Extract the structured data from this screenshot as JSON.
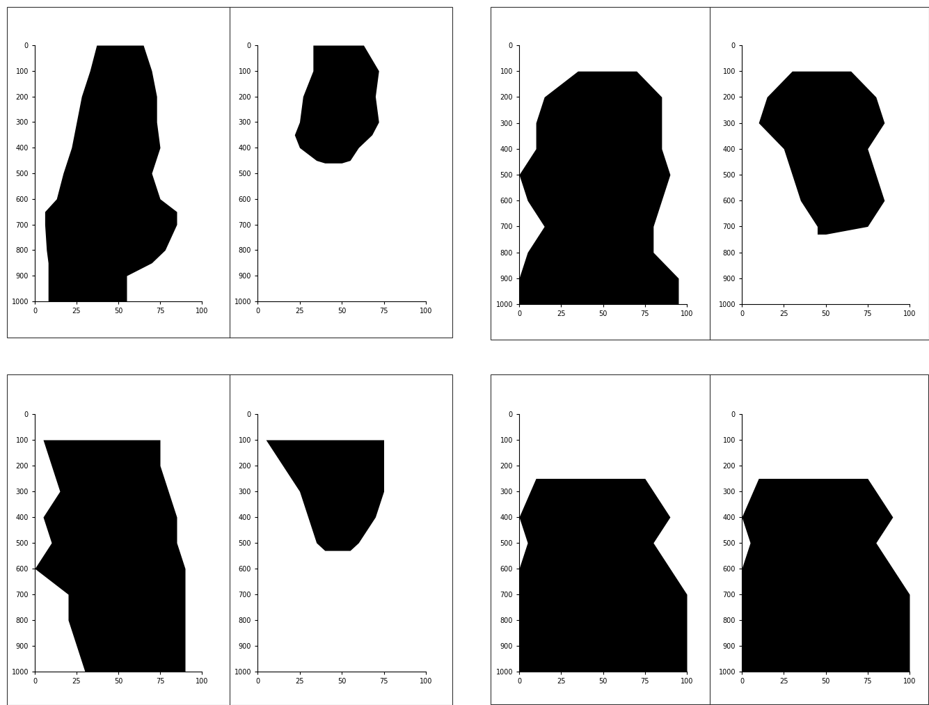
{
  "chart_data": [
    {
      "type": "area",
      "orientation": "horizontal",
      "color": "#000000",
      "y": [
        0,
        100,
        200,
        300,
        400,
        500,
        600,
        650,
        700,
        800,
        850,
        900,
        1000
      ],
      "left": [
        37,
        33,
        28,
        25,
        22,
        17,
        13,
        6,
        6,
        7,
        8,
        8,
        8
      ],
      "right": [
        65,
        70,
        73,
        73,
        75,
        70,
        75,
        85,
        85,
        78,
        70,
        55,
        55
      ],
      "xlim": [
        0,
        100
      ],
      "xticks": [
        0,
        25,
        50,
        75,
        100
      ],
      "ylim": [
        1000,
        0
      ],
      "yticks": [
        0,
        100,
        200,
        300,
        400,
        500,
        600,
        700,
        800,
        900,
        1000
      ]
    },
    {
      "type": "area",
      "orientation": "horizontal",
      "color": "#000000",
      "y": [
        0,
        100,
        200,
        300,
        350,
        400,
        450,
        460
      ],
      "left": [
        33,
        33,
        27,
        25,
        22,
        25,
        35,
        40
      ],
      "right": [
        63,
        72,
        70,
        72,
        68,
        60,
        55,
        50
      ],
      "xlim": [
        0,
        100
      ],
      "xticks": [
        0,
        25,
        50,
        75,
        100
      ],
      "ylim": [
        1000,
        0
      ],
      "yticks": [
        0,
        100,
        200,
        300,
        400,
        500,
        600,
        700,
        800,
        900,
        1000
      ]
    },
    {
      "type": "area",
      "orientation": "horizontal",
      "color": "#000000",
      "y": [
        100,
        200,
        300,
        400,
        500,
        600,
        700,
        800,
        900,
        1000
      ],
      "left": [
        35,
        15,
        10,
        10,
        0,
        5,
        15,
        5,
        0,
        0
      ],
      "right": [
        70,
        85,
        85,
        85,
        90,
        85,
        80,
        80,
        95,
        95
      ],
      "xlim": [
        0,
        100
      ],
      "xticks": [
        0,
        25,
        50,
        75,
        100
      ],
      "ylim": [
        1000,
        0
      ],
      "yticks": [
        0,
        100,
        200,
        300,
        400,
        500,
        600,
        700,
        800,
        900,
        1000
      ]
    },
    {
      "type": "area",
      "orientation": "horizontal",
      "color": "#000000",
      "y": [
        100,
        200,
        300,
        400,
        500,
        600,
        700,
        730
      ],
      "left": [
        30,
        15,
        10,
        25,
        30,
        35,
        45,
        45
      ],
      "right": [
        65,
        80,
        85,
        75,
        80,
        85,
        75,
        50
      ],
      "xlim": [
        0,
        100
      ],
      "xticks": [
        0,
        25,
        50,
        75,
        100
      ],
      "ylim": [
        1000,
        0
      ],
      "yticks": [
        0,
        100,
        200,
        300,
        400,
        500,
        600,
        700,
        800,
        900,
        1000
      ]
    },
    {
      "type": "area",
      "orientation": "horizontal",
      "color": "#000000",
      "y": [
        100,
        200,
        300,
        400,
        500,
        600,
        700,
        800,
        900,
        1000
      ],
      "left": [
        5,
        10,
        15,
        5,
        10,
        0,
        20,
        20,
        25,
        30
      ],
      "right": [
        75,
        75,
        80,
        85,
        85,
        90,
        90,
        90,
        90,
        90
      ],
      "xlim": [
        0,
        100
      ],
      "xticks": [
        0,
        25,
        50,
        75,
        100
      ],
      "ylim": [
        1000,
        0
      ],
      "yticks": [
        0,
        100,
        200,
        300,
        400,
        500,
        600,
        700,
        800,
        900,
        1000
      ]
    },
    {
      "type": "area",
      "orientation": "horizontal",
      "color": "#000000",
      "y": [
        100,
        200,
        300,
        400,
        500,
        530
      ],
      "left": [
        5,
        15,
        25,
        30,
        35,
        40
      ],
      "right": [
        75,
        75,
        75,
        70,
        60,
        55
      ],
      "xlim": [
        0,
        100
      ],
      "xticks": [
        0,
        25,
        50,
        75,
        100
      ],
      "ylim": [
        1000,
        0
      ],
      "yticks": [
        0,
        100,
        200,
        300,
        400,
        500,
        600,
        700,
        800,
        900,
        1000
      ]
    },
    {
      "type": "area",
      "orientation": "horizontal",
      "color": "#000000",
      "y": [
        250,
        400,
        500,
        600,
        700,
        800,
        900,
        1000
      ],
      "left": [
        10,
        0,
        5,
        0,
        0,
        0,
        0,
        0
      ],
      "right": [
        75,
        90,
        80,
        90,
        100,
        100,
        100,
        100
      ],
      "xlim": [
        0,
        100
      ],
      "xticks": [
        0,
        25,
        50,
        75,
        100
      ],
      "ylim": [
        1000,
        0
      ],
      "yticks": [
        0,
        100,
        200,
        300,
        400,
        500,
        600,
        700,
        800,
        900,
        1000
      ]
    },
    {
      "type": "area",
      "orientation": "horizontal",
      "color": "#000000",
      "y": [
        250,
        400,
        500,
        600,
        700,
        800,
        900,
        1000
      ],
      "left": [
        10,
        0,
        5,
        0,
        0,
        0,
        0,
        0
      ],
      "right": [
        75,
        90,
        80,
        90,
        100,
        100,
        100,
        100
      ],
      "xlim": [
        0,
        100
      ],
      "xticks": [
        0,
        25,
        50,
        75,
        100
      ],
      "ylim": [
        1000,
        0
      ],
      "yticks": [
        0,
        100,
        200,
        300,
        400,
        500,
        600,
        700,
        800,
        900,
        1000
      ]
    }
  ]
}
